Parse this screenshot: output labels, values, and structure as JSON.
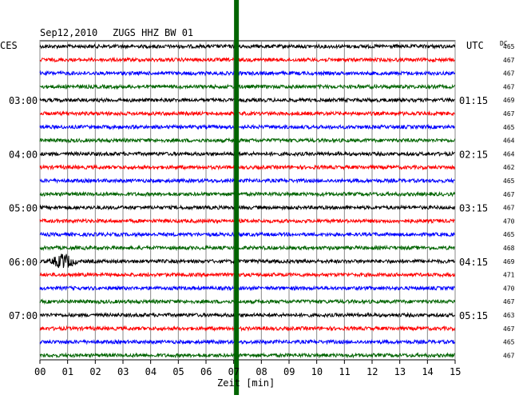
{
  "header": {
    "date": "Sep12,2010",
    "station": "ZUGS HHZ BW 01",
    "left_tz": "CES",
    "right_tz": "UTC",
    "dc_label": "DC"
  },
  "colors": {
    "trace_cycle": [
      "#000000",
      "#ff0000",
      "#0000ff",
      "#006400"
    ],
    "grid": "#888888",
    "green_marker": "#006400"
  },
  "chart_data": {
    "type": "line",
    "title": "Sep12,2010   ZUGS HHZ BW 01",
    "xlabel": "Zeit [min]",
    "xlim": [
      0,
      15
    ],
    "x_ticks": [
      "00",
      "01",
      "02",
      "03",
      "04",
      "05",
      "06",
      "07",
      "08",
      "09",
      "10",
      "11",
      "12",
      "13",
      "14",
      "15"
    ],
    "grid": true,
    "left_time_labels": [
      {
        "row": 4,
        "label": "03:00"
      },
      {
        "row": 8,
        "label": "04:00"
      },
      {
        "row": 12,
        "label": "05:00"
      },
      {
        "row": 16,
        "label": "06:00"
      },
      {
        "row": 20,
        "label": "07:00"
      }
    ],
    "right_time_labels": [
      {
        "row": 4,
        "label": "01:15"
      },
      {
        "row": 8,
        "label": "02:15"
      },
      {
        "row": 12,
        "label": "03:15"
      },
      {
        "row": 16,
        "label": "04:15"
      },
      {
        "row": 20,
        "label": "05:15"
      }
    ],
    "dc_offsets": [
      465,
      467,
      467,
      467,
      469,
      467,
      465,
      464,
      464,
      462,
      465,
      467,
      467,
      470,
      465,
      468,
      469,
      471,
      470,
      467,
      463,
      467,
      465,
      467
    ],
    "events": [
      {
        "row": 16,
        "x_start_min": 0.3,
        "x_end_min": 1.4,
        "description": "earthquake signal"
      }
    ],
    "vertical_marker_min": 7.1
  }
}
